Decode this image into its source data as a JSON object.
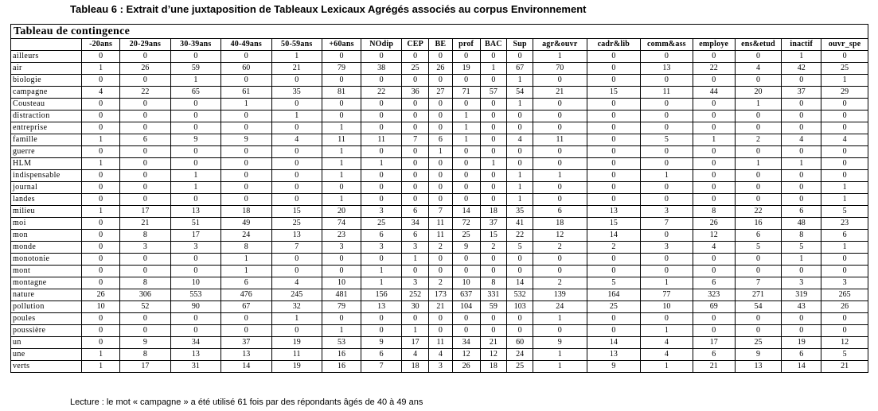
{
  "caption": "Tableau 6 : Extrait d’une juxtaposition de Tableaux Lexicaux Agrégés associés au corpus Environnement",
  "table_title": "Tableau de contingence",
  "columns": [
    "-20ans",
    "20-29ans",
    "30-39ans",
    "40-49ans",
    "50-59ans",
    "+60ans",
    "NOdip",
    "CEP",
    "BE",
    "prof",
    "BAC",
    "Sup",
    "agr&ouvr",
    "cadr&lib",
    "comm&ass",
    "employe",
    "ens&etud",
    "inactif",
    "ouvr_spe"
  ],
  "rows": [
    {
      "label": "ailleurs",
      "values": [
        "0",
        "0",
        "0",
        "0",
        "1",
        "0",
        "0",
        "0",
        "0",
        "0",
        "0",
        "0",
        "1",
        "0",
        "0",
        "0",
        "0",
        "1",
        "0"
      ]
    },
    {
      "label": "air",
      "values": [
        "1",
        "26",
        "59",
        "60",
        "21",
        "79",
        "38",
        "25",
        "26",
        "19",
        "1",
        "67",
        "70",
        "0",
        "13",
        "22",
        "4",
        "42",
        "25"
      ]
    },
    {
      "label": "biologie",
      "values": [
        "0",
        "0",
        "1",
        "0",
        "0",
        "0",
        "0",
        "0",
        "0",
        "0",
        "0",
        "1",
        "0",
        "0",
        "0",
        "0",
        "0",
        "0",
        "1"
      ]
    },
    {
      "label": "campagne",
      "values": [
        "4",
        "22",
        "65",
        "61",
        "35",
        "81",
        "22",
        "36",
        "27",
        "71",
        "57",
        "54",
        "21",
        "15",
        "11",
        "44",
        "20",
        "37",
        "29"
      ]
    },
    {
      "label": "Cousteau",
      "values": [
        "0",
        "0",
        "0",
        "1",
        "0",
        "0",
        "0",
        "0",
        "0",
        "0",
        "0",
        "1",
        "0",
        "0",
        "0",
        "0",
        "1",
        "0",
        "0"
      ]
    },
    {
      "label": "distraction",
      "values": [
        "0",
        "0",
        "0",
        "0",
        "1",
        "0",
        "0",
        "0",
        "0",
        "1",
        "0",
        "0",
        "0",
        "0",
        "0",
        "0",
        "0",
        "0",
        "0"
      ]
    },
    {
      "label": "entreprise",
      "values": [
        "0",
        "0",
        "0",
        "0",
        "0",
        "1",
        "0",
        "0",
        "0",
        "1",
        "0",
        "0",
        "0",
        "0",
        "0",
        "0",
        "0",
        "0",
        "0"
      ]
    },
    {
      "label": "famille",
      "values": [
        "1",
        "6",
        "9",
        "9",
        "4",
        "11",
        "11",
        "7",
        "6",
        "1",
        "0",
        "4",
        "11",
        "0",
        "5",
        "1",
        "2",
        "4",
        "4"
      ]
    },
    {
      "label": "guerre",
      "values": [
        "0",
        "0",
        "0",
        "0",
        "0",
        "1",
        "0",
        "0",
        "1",
        "0",
        "0",
        "0",
        "0",
        "0",
        "0",
        "0",
        "0",
        "0",
        "0"
      ]
    },
    {
      "label": "HLM",
      "values": [
        "1",
        "0",
        "0",
        "0",
        "0",
        "1",
        "1",
        "0",
        "0",
        "0",
        "1",
        "0",
        "0",
        "0",
        "0",
        "0",
        "1",
        "1",
        "0"
      ]
    },
    {
      "label": "indispensable",
      "values": [
        "0",
        "0",
        "1",
        "0",
        "0",
        "1",
        "0",
        "0",
        "0",
        "0",
        "0",
        "1",
        "1",
        "0",
        "1",
        "0",
        "0",
        "0",
        "0"
      ]
    },
    {
      "label": "journal",
      "values": [
        "0",
        "0",
        "1",
        "0",
        "0",
        "0",
        "0",
        "0",
        "0",
        "0",
        "0",
        "1",
        "0",
        "0",
        "0",
        "0",
        "0",
        "0",
        "1"
      ]
    },
    {
      "label": "landes",
      "values": [
        "0",
        "0",
        "0",
        "0",
        "0",
        "1",
        "0",
        "0",
        "0",
        "0",
        "0",
        "1",
        "0",
        "0",
        "0",
        "0",
        "0",
        "0",
        "1"
      ]
    },
    {
      "label": "milieu",
      "values": [
        "1",
        "17",
        "13",
        "18",
        "15",
        "20",
        "3",
        "6",
        "7",
        "14",
        "18",
        "35",
        "6",
        "13",
        "3",
        "8",
        "22",
        "6",
        "5"
      ]
    },
    {
      "label": "moi",
      "values": [
        "0",
        "21",
        "51",
        "49",
        "25",
        "74",
        "25",
        "34",
        "11",
        "72",
        "37",
        "41",
        "18",
        "15",
        "7",
        "26",
        "16",
        "48",
        "23"
      ]
    },
    {
      "label": "mon",
      "values": [
        "0",
        "8",
        "17",
        "24",
        "13",
        "23",
        "6",
        "6",
        "11",
        "25",
        "15",
        "22",
        "12",
        "14",
        "0",
        "12",
        "6",
        "8",
        "6"
      ]
    },
    {
      "label": "monde",
      "values": [
        "0",
        "3",
        "3",
        "8",
        "7",
        "3",
        "3",
        "3",
        "2",
        "9",
        "2",
        "5",
        "2",
        "2",
        "3",
        "4",
        "5",
        "5",
        "1"
      ]
    },
    {
      "label": "monotonie",
      "values": [
        "0",
        "0",
        "0",
        "1",
        "0",
        "0",
        "0",
        "1",
        "0",
        "0",
        "0",
        "0",
        "0",
        "0",
        "0",
        "0",
        "0",
        "1",
        "0"
      ]
    },
    {
      "label": "mont",
      "values": [
        "0",
        "0",
        "0",
        "1",
        "0",
        "0",
        "1",
        "0",
        "0",
        "0",
        "0",
        "0",
        "0",
        "0",
        "0",
        "0",
        "0",
        "0",
        "0"
      ]
    },
    {
      "label": "montagne",
      "values": [
        "0",
        "8",
        "10",
        "6",
        "4",
        "10",
        "1",
        "3",
        "2",
        "10",
        "8",
        "14",
        "2",
        "5",
        "1",
        "6",
        "7",
        "3",
        "3"
      ]
    },
    {
      "label": "nature",
      "values": [
        "26",
        "306",
        "553",
        "476",
        "245",
        "481",
        "156",
        "252",
        "173",
        "637",
        "331",
        "532",
        "139",
        "164",
        "77",
        "323",
        "271",
        "319",
        "265"
      ]
    },
    {
      "label": "pollution",
      "values": [
        "10",
        "52",
        "90",
        "67",
        "32",
        "79",
        "13",
        "30",
        "21",
        "104",
        "59",
        "103",
        "24",
        "25",
        "10",
        "69",
        "54",
        "43",
        "26"
      ]
    },
    {
      "label": "poules",
      "values": [
        "0",
        "0",
        "0",
        "0",
        "1",
        "0",
        "0",
        "0",
        "0",
        "0",
        "0",
        "0",
        "1",
        "0",
        "0",
        "0",
        "0",
        "0",
        "0"
      ]
    },
    {
      "label": "poussière",
      "values": [
        "0",
        "0",
        "0",
        "0",
        "0",
        "1",
        "0",
        "1",
        "0",
        "0",
        "0",
        "0",
        "0",
        "0",
        "1",
        "0",
        "0",
        "0",
        "0"
      ]
    },
    {
      "label": "un",
      "values": [
        "0",
        "9",
        "34",
        "37",
        "19",
        "53",
        "9",
        "17",
        "11",
        "34",
        "21",
        "60",
        "9",
        "14",
        "4",
        "17",
        "25",
        "19",
        "12"
      ]
    },
    {
      "label": "une",
      "values": [
        "1",
        "8",
        "13",
        "13",
        "11",
        "16",
        "6",
        "4",
        "4",
        "12",
        "12",
        "24",
        "1",
        "13",
        "4",
        "6",
        "9",
        "6",
        "5"
      ]
    },
    {
      "label": "verts",
      "values": [
        "1",
        "17",
        "31",
        "14",
        "19",
        "16",
        "7",
        "18",
        "3",
        "26",
        "18",
        "25",
        "1",
        "9",
        "1",
        "21",
        "13",
        "14",
        "21"
      ]
    }
  ],
  "footnote": "Lecture : le mot « campagne » a été utilisé 61 fois par des répondants âgés de 40 à 49 ans"
}
